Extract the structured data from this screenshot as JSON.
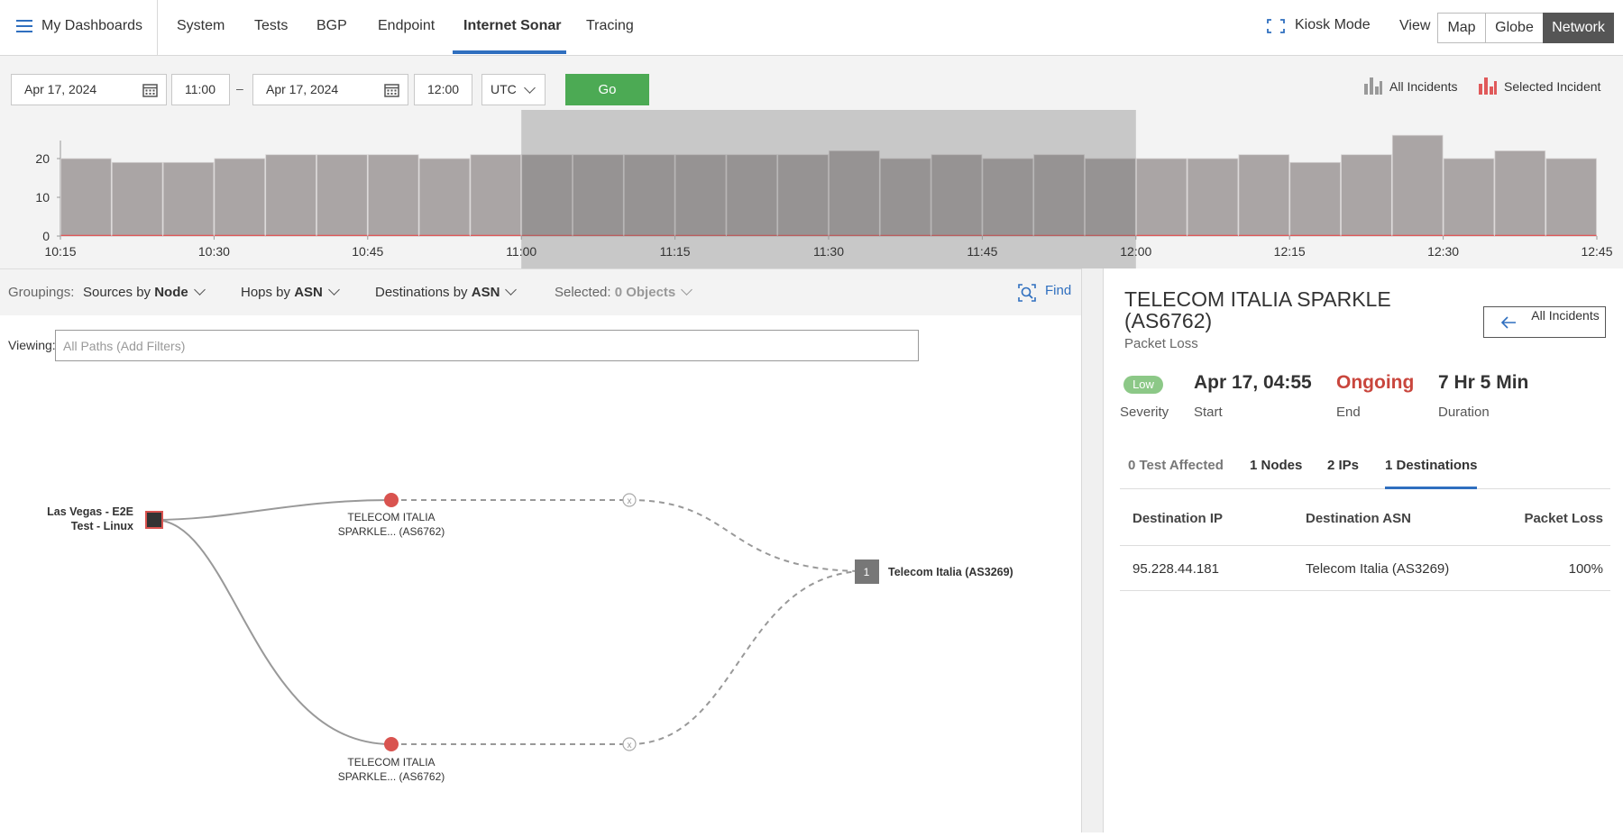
{
  "nav": {
    "my_dashboards": "My Dashboards",
    "tabs": [
      {
        "label": "System"
      },
      {
        "label": "Tests"
      },
      {
        "label": "BGP"
      },
      {
        "label": "Endpoint"
      },
      {
        "label": "Internet Sonar",
        "active": true
      },
      {
        "label": "Tracing"
      }
    ],
    "kiosk_mode": "Kiosk Mode",
    "view_label": "View",
    "view_options": [
      {
        "label": "Map"
      },
      {
        "label": "Globe"
      },
      {
        "label": "Network",
        "active": true
      }
    ],
    "accent_color": "#2f6fbf"
  },
  "filters": {
    "start_date": "Apr 17, 2024",
    "start_time": "11:00",
    "separator": "–",
    "end_date": "Apr 17, 2024",
    "end_time": "12:00",
    "timezone": "UTC",
    "go_label": "Go",
    "legend_all": "All Incidents",
    "legend_selected": "Selected Incident"
  },
  "chart_data": {
    "type": "bar",
    "categories": [
      "10:15",
      "10:20",
      "10:25",
      "10:30",
      "10:35",
      "10:40",
      "10:45",
      "10:50",
      "10:55",
      "11:00",
      "11:05",
      "11:10",
      "11:15",
      "11:20",
      "11:25",
      "11:30",
      "11:35",
      "11:40",
      "11:45",
      "11:50",
      "11:55",
      "12:00",
      "12:05",
      "12:10",
      "12:15",
      "12:20",
      "12:25",
      "12:30",
      "12:35",
      "12:40"
    ],
    "series": [
      {
        "values": [
          20,
          19,
          19,
          20,
          21,
          21,
          21,
          20,
          21,
          21,
          21,
          21,
          21,
          21,
          21,
          22,
          20,
          21,
          20,
          21,
          20,
          20,
          20,
          21,
          19,
          21,
          26,
          20,
          22,
          20
        ]
      },
      {
        "values": [
          1,
          1,
          1,
          1,
          1,
          1,
          1,
          1,
          1,
          1,
          1,
          1,
          1,
          1,
          1,
          1,
          1,
          1,
          1,
          1,
          1,
          1,
          1,
          1,
          1,
          1,
          1,
          1,
          1,
          1
        ]
      }
    ],
    "x_tick_labels": [
      "10:15",
      "10:30",
      "10:45",
      "11:00",
      "11:15",
      "11:30",
      "11:45",
      "12:00",
      "12:15",
      "12:30",
      "12:45"
    ],
    "y_ticks": [
      0,
      10,
      20
    ],
    "ylim": [
      0,
      27
    ],
    "selected_range": [
      "11:00",
      "12:00"
    ],
    "bar_color": "#aaa5a5",
    "selected_color": "#e0595a"
  },
  "groupings": {
    "label": "Groupings:",
    "sources_prefix": "Sources by",
    "sources_value": "Node",
    "hops_prefix": "Hops by",
    "hops_value": "ASN",
    "destinations_prefix": "Destinations by",
    "destinations_value": "ASN",
    "selected_label": "Selected:",
    "selected_value": "0 Objects",
    "find_label": "Find"
  },
  "viewing": {
    "label": "Viewing:",
    "placeholder": "All Paths (Add Filters)"
  },
  "graph": {
    "source_label_1": "Las Vegas - E2E",
    "source_label_2": "Test - Linux",
    "hop_top_1": "TELECOM ITALIA",
    "hop_top_2": "SPARKLE... (AS6762)",
    "hop_bottom_1": "TELECOM ITALIA",
    "hop_bottom_2": "SPARKLE... (AS6762)",
    "dest_count": "1",
    "dest_label": "Telecom Italia (AS3269)",
    "x_mark": "x"
  },
  "incident": {
    "title": "TELECOM ITALIA SPARKLE (AS6762)",
    "subtitle": "Packet Loss",
    "all_incidents_label": "All Incidents",
    "severity_badge": "Low",
    "severity_label": "Severity",
    "start_value": "Apr 17, 04:55",
    "start_label": "Start",
    "end_value": "Ongoing",
    "end_label": "End",
    "duration_value": "7 Hr 5 Min",
    "duration_label": "Duration",
    "tabs": [
      {
        "label": "0 Test Affected"
      },
      {
        "label": "1 Nodes"
      },
      {
        "label": "2 IPs"
      },
      {
        "label": "1 Destinations",
        "active": true
      }
    ],
    "table": {
      "headers": [
        "Destination IP",
        "Destination ASN",
        "Packet Loss"
      ],
      "rows": [
        [
          "95.228.44.181",
          "Telecom Italia (AS3269)",
          "100%"
        ]
      ]
    }
  }
}
